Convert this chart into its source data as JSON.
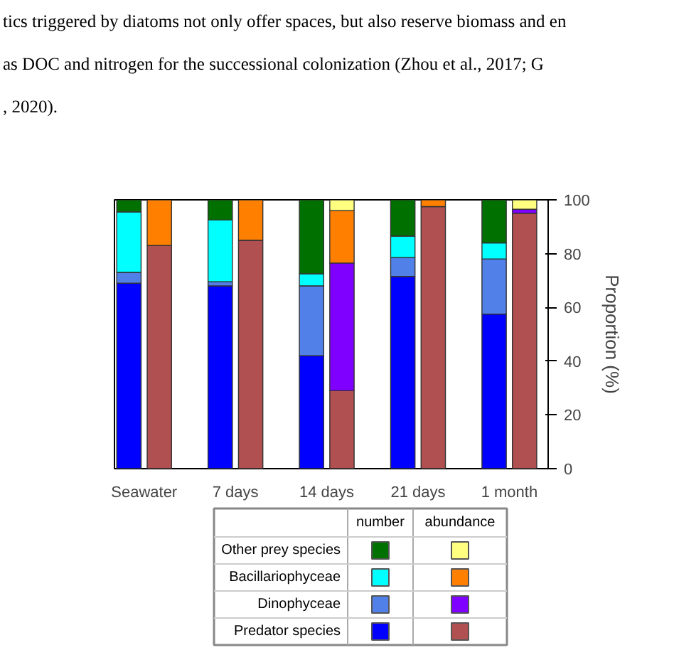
{
  "chart_data": {
    "type": "bar",
    "stacked": true,
    "ylabel": "Proportion (%)",
    "categories": [
      "Seawater",
      null,
      null,
      "7 days",
      null,
      null,
      "14 days",
      null,
      null,
      "21 days",
      null,
      null,
      "1 month",
      null
    ],
    "ylim": [
      0,
      100
    ],
    "yticks": [
      0,
      20,
      40,
      60,
      80,
      100
    ],
    "legend": "bottom",
    "annotations": [
      "tics triggered by diatoms not only offer spaces, but also reserve biomass and en",
      "as DOC and nitrogen for the successional colonization (Zhou et al., 2017; G",
      ", 2020).",
      "number",
      "abundance"
    ],
    "series": [
      {
        "name": "Predator species",
        "colors": [
          "#0000ff",
          "#b05050",
          null,
          "#0000ff",
          "#b05050",
          null,
          "#0000ff",
          "#b05050",
          null,
          "#0000ff",
          "#b05050",
          null,
          "#0000ff",
          "#b05050"
        ],
        "values": [
          69,
          83,
          null,
          68,
          85,
          null,
          42,
          29,
          null,
          71.5,
          97.5,
          null,
          57.5,
          95
        ]
      },
      {
        "name": "Dinophyceae",
        "colors": [
          "#5080e8",
          "#8000ff",
          null,
          "#5080e8",
          "#8000ff",
          null,
          "#5080e8",
          "#8000ff",
          null,
          "#5080e8",
          "#8000ff",
          null,
          "#5080e8",
          "#8000ff"
        ],
        "values": [
          4,
          0,
          null,
          1.5,
          0,
          null,
          26,
          47.5,
          null,
          7,
          0,
          null,
          20.5,
          1.5
        ]
      },
      {
        "name": "Bacillariophyceae",
        "colors": [
          "#00ffff",
          "#ff8000",
          null,
          "#00ffff",
          "#ff8000",
          null,
          "#00ffff",
          "#ff8000",
          null,
          "#00ffff",
          "#ff8000",
          null,
          "#00ffff",
          "#ff8000"
        ],
        "values": [
          22.5,
          17,
          null,
          23,
          15,
          null,
          4.5,
          19.5,
          null,
          8,
          2.5,
          null,
          6,
          0
        ]
      },
      {
        "name": "Other prey species",
        "colors": [
          "#007000",
          "#ffff80",
          null,
          "#007000",
          "#ffff80",
          null,
          "#007000",
          "#ffff80",
          null,
          "#007000",
          "#ffff80",
          null,
          "#007000",
          "#ffff80"
        ],
        "values": [
          4.5,
          0,
          null,
          7.5,
          0,
          null,
          27.5,
          4,
          null,
          13.5,
          0,
          null,
          16,
          3.5
        ]
      }
    ]
  }
}
